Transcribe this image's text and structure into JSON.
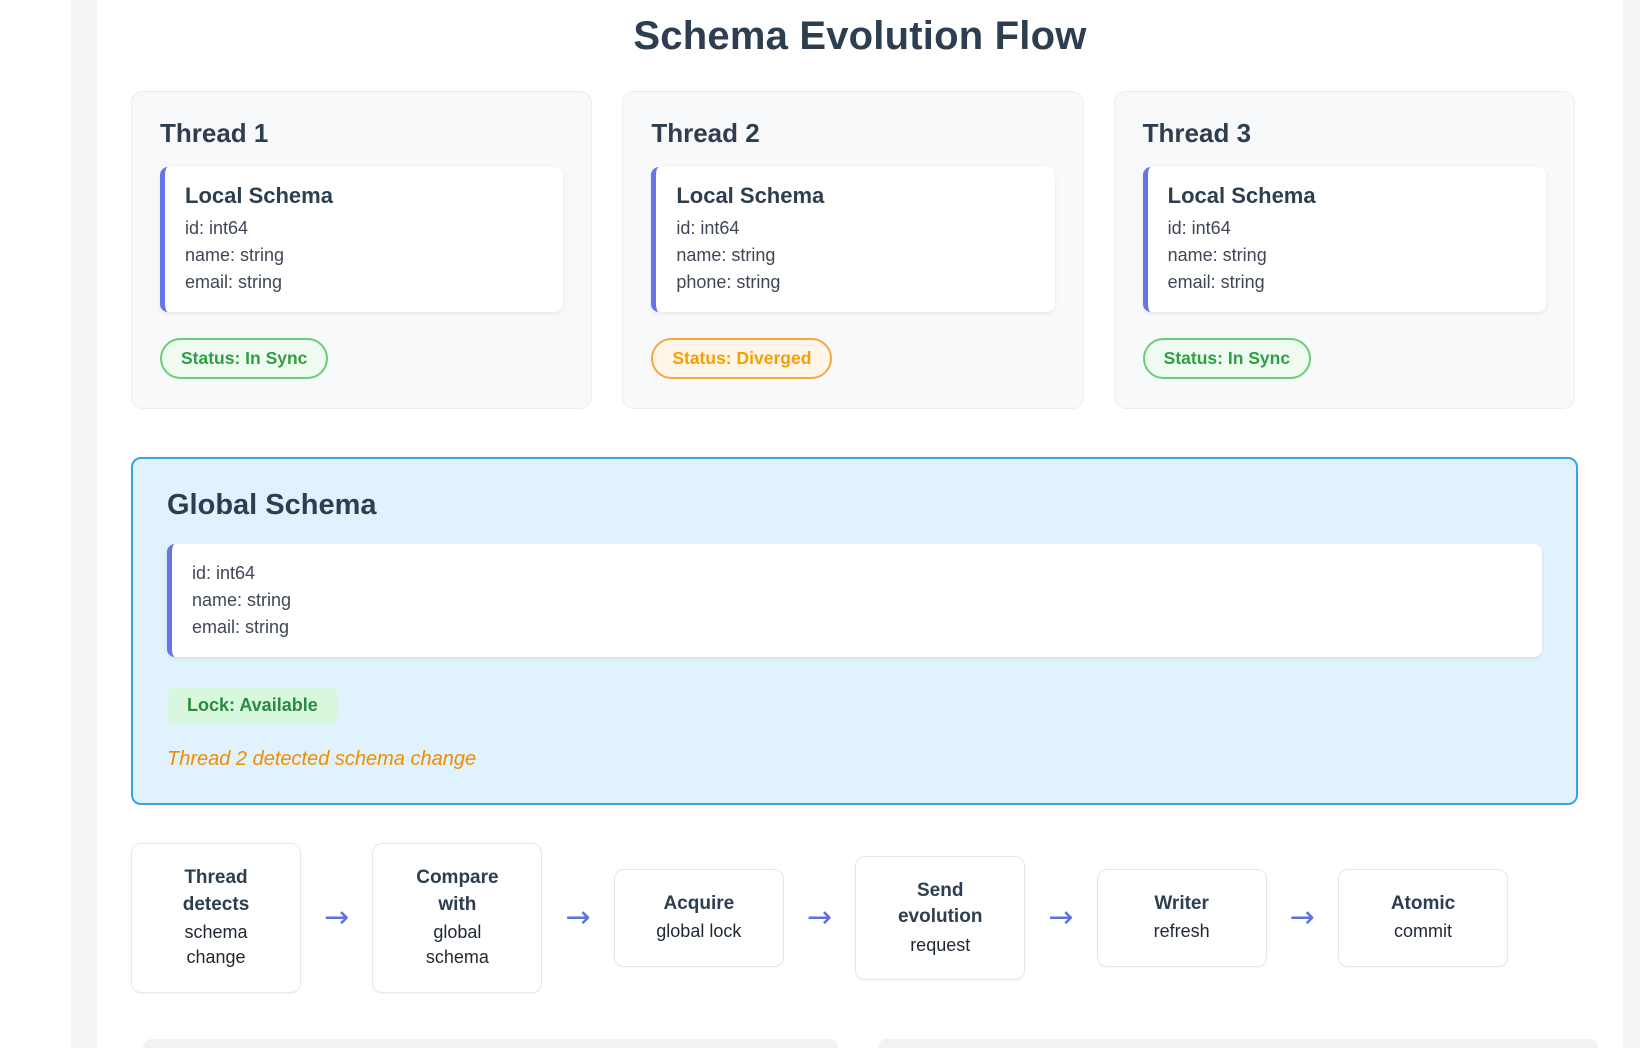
{
  "page": {
    "title": "Schema Evolution Flow"
  },
  "threads": [
    {
      "name": "Thread 1",
      "schema_title": "Local Schema",
      "fields": [
        "id: int64",
        "name: string",
        "email: string"
      ],
      "status": "Status: In Sync",
      "status_kind": "in-sync"
    },
    {
      "name": "Thread 2",
      "schema_title": "Local Schema",
      "fields": [
        "id: int64",
        "name: string",
        "phone: string"
      ],
      "status": "Status: Diverged",
      "status_kind": "diverged"
    },
    {
      "name": "Thread 3",
      "schema_title": "Local Schema",
      "fields": [
        "id: int64",
        "name: string",
        "email: string"
      ],
      "status": "Status: In Sync",
      "status_kind": "in-sync"
    }
  ],
  "global": {
    "title": "Global Schema",
    "fields": [
      "id: int64",
      "name: string",
      "email: string"
    ],
    "lock": "Lock: Available",
    "note": "Thread 2 detected schema change"
  },
  "flow": {
    "arrow": "→",
    "steps": [
      {
        "title": "Thread\ndetects",
        "subtitle": "schema\nchange"
      },
      {
        "title": "Compare\nwith",
        "subtitle": "global\nschema"
      },
      {
        "title": "Acquire",
        "subtitle": "global lock"
      },
      {
        "title": "Send\nevolution",
        "subtitle": "request"
      },
      {
        "title": "Writer",
        "subtitle": "refresh"
      },
      {
        "title": "Atomic",
        "subtitle": "commit"
      }
    ]
  },
  "colors": {
    "heading": "#2c3e50",
    "indigo_rail": "#6674e8",
    "global_border": "#39a2e2",
    "global_bg": "#e0f2fd",
    "success_text": "#2f9e44",
    "success_border": "#69cf77",
    "success_bg": "#effbf1",
    "warning_text": "#f59f00",
    "warning_border": "#f5a742",
    "warning_bg": "#fff6e9",
    "lock_bg": "#d7f8dc",
    "lock_text": "#2b8a3e",
    "note_orange": "#f08c00",
    "arrow_blue": "#5b72e0"
  }
}
